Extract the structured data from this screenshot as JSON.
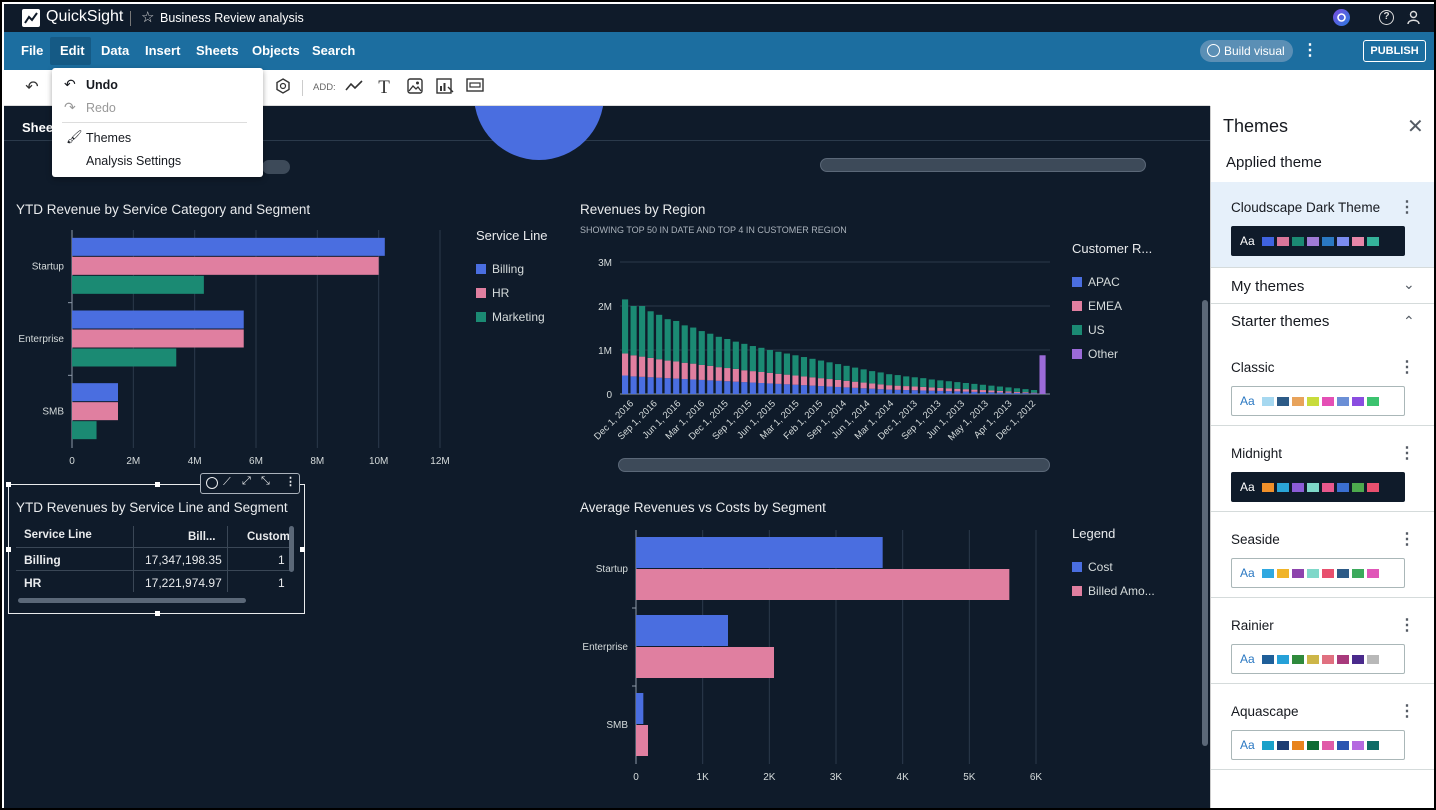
{
  "app": {
    "title": "QuickSight",
    "analysis_name": "Business Review analysis"
  },
  "menubar": {
    "items": [
      "File",
      "Edit",
      "Data",
      "Insert",
      "Sheets",
      "Objects",
      "Search"
    ],
    "build_visual": "Build visual",
    "publish": "PUBLISH"
  },
  "toolbar": {
    "add_label": "ADD:"
  },
  "edit_menu": {
    "undo": "Undo",
    "redo": "Redo",
    "themes": "Themes",
    "analysis_settings": "Analysis Settings"
  },
  "sheet_tab": "Sheet",
  "themes_panel": {
    "title": "Themes",
    "applied_label": "Applied theme",
    "applied": {
      "name": "Cloudscape Dark Theme",
      "aa": "Aa",
      "dark": true,
      "colors": [
        "#3f63e0",
        "#d9769a",
        "#1b8a73",
        "#9f7bd6",
        "#2a78c2",
        "#7b8cf0",
        "#e786a8",
        "#35b39a"
      ]
    },
    "my_themes": "My themes",
    "starter_themes": "Starter themes",
    "starters": [
      {
        "name": "Classic",
        "dark": false,
        "colors": [
          "#a6d8f0",
          "#2d5b87",
          "#e8a35b",
          "#c8dc3c",
          "#e44fb5",
          "#6b8fd6",
          "#8a4de0",
          "#3cc36f"
        ]
      },
      {
        "name": "Midnight",
        "dark": true,
        "colors": [
          "#f0902a",
          "#2aa5d8",
          "#8b5cd6",
          "#7fd8c9",
          "#e8588c",
          "#3a6fd0",
          "#4daa4d",
          "#e8506e"
        ]
      },
      {
        "name": "Seaside",
        "dark": false,
        "colors": [
          "#2fa8e0",
          "#f0b429",
          "#8e44ad",
          "#7fd8c9",
          "#e8506e",
          "#2d5b87",
          "#3caa5c",
          "#e056b8"
        ]
      },
      {
        "name": "Rainier",
        "dark": false,
        "colors": [
          "#1f5f99",
          "#26a1d8",
          "#2f8a3c",
          "#cdb648",
          "#e07080",
          "#a83a7c",
          "#4a2a8c",
          "#b8b8b8"
        ]
      },
      {
        "name": "Aquascape",
        "dark": false,
        "colors": [
          "#1aa1c9",
          "#1c3d73",
          "#e8831c",
          "#0e6b33",
          "#e05aa8",
          "#2a55b0",
          "#b56ae0",
          "#0e6b66"
        ]
      }
    ]
  },
  "colors": {
    "billing": "#4a6ee0",
    "hr": "#e07fa0",
    "marketing": "#1b8a73",
    "other": "#9b6bd8",
    "canvas": "#0f1b2a",
    "menubar": "#1c6ea0"
  },
  "visuals": {
    "ytd_bar": {
      "title": "YTD Revenue by Service Category and Segment",
      "legend_title": "Service Line",
      "legend": [
        "Billing",
        "HR",
        "Marketing"
      ]
    },
    "region": {
      "title": "Revenues by Region",
      "subtitle": "SHOWING TOP 50 IN DATE AND TOP 4 IN CUSTOMER REGION",
      "legend_title": "Customer R...",
      "legend": [
        "APAC",
        "EMEA",
        "US",
        "Other"
      ]
    },
    "table": {
      "title": "YTD Revenues by Service Line and Segment",
      "headers": [
        "Service Line",
        "Bill...",
        "Custom"
      ],
      "rows": [
        [
          "Billing",
          "17,347,198.35",
          "1"
        ],
        [
          "HR",
          "17,221,974.97",
          "1"
        ]
      ]
    },
    "avg": {
      "title": "Average Revenues vs Costs by Segment",
      "legend_title": "Legend",
      "legend": [
        "Cost",
        "Billed Amo..."
      ]
    }
  },
  "chart_data": [
    {
      "type": "bar",
      "orientation": "horizontal",
      "title": "YTD Revenue by Service Category and Segment",
      "categories": [
        "Startup",
        "Enterprise",
        "SMB"
      ],
      "series": [
        {
          "name": "Billing",
          "values": [
            10.2,
            5.6,
            1.5
          ]
        },
        {
          "name": "HR",
          "values": [
            10.0,
            5.6,
            1.5
          ]
        },
        {
          "name": "Marketing",
          "values": [
            4.3,
            3.4,
            0.8
          ]
        }
      ],
      "xticks": [
        "0",
        "2M",
        "4M",
        "6M",
        "8M",
        "10M",
        "12M"
      ],
      "xlim": [
        0,
        12
      ],
      "unit": "M"
    },
    {
      "type": "bar",
      "stacked": true,
      "title": "Revenues by Region",
      "x_tick_labels": [
        "Dec 1, 2016",
        "Sep 1, 2016",
        "Jun 1, 2016",
        "Mar 1, 2016",
        "Dec 1, 2015",
        "Sep 1, 2015",
        "Jun 1, 2015",
        "Mar 1, 2015",
        "Feb 1, 2015",
        "Sep 1, 2014",
        "Jun 1, 2014",
        "Mar 1, 2014",
        "Dec 1, 2013",
        "Sep 1, 2013",
        "Jun 1, 2013",
        "May 1, 2013",
        "Apr 1, 2013",
        "Dec 1, 2012"
      ],
      "yticks": [
        "0",
        "1M",
        "2M",
        "3M"
      ],
      "ylim": [
        0,
        3
      ],
      "series": [
        {
          "name": "APAC",
          "values": [
            0.42,
            0.4,
            0.39,
            0.38,
            0.37,
            0.36,
            0.35,
            0.34,
            0.33,
            0.32,
            0.31,
            0.3,
            0.29,
            0.28,
            0.27,
            0.26,
            0.25,
            0.24,
            0.23,
            0.22,
            0.21,
            0.2,
            0.19,
            0.18,
            0.17,
            0.16,
            0.15,
            0.14,
            0.13,
            0.12,
            0.11,
            0.1,
            0.095,
            0.09,
            0.085,
            0.08,
            0.075,
            0.07,
            0.065,
            0.06,
            0.055,
            0.05,
            0.045,
            0.04,
            0.035,
            0.03,
            0.025,
            0.02,
            0.015,
            0.0
          ]
        },
        {
          "name": "EMEA",
          "values": [
            0.5,
            0.48,
            0.46,
            0.44,
            0.42,
            0.4,
            0.39,
            0.37,
            0.36,
            0.34,
            0.33,
            0.31,
            0.3,
            0.29,
            0.27,
            0.26,
            0.25,
            0.24,
            0.23,
            0.22,
            0.21,
            0.2,
            0.19,
            0.18,
            0.17,
            0.16,
            0.15,
            0.14,
            0.13,
            0.12,
            0.11,
            0.1,
            0.095,
            0.09,
            0.085,
            0.08,
            0.075,
            0.07,
            0.065,
            0.06,
            0.055,
            0.05,
            0.045,
            0.04,
            0.035,
            0.03,
            0.025,
            0.02,
            0.015,
            0.0
          ]
        },
        {
          "name": "US",
          "values": [
            1.23,
            1.12,
            1.15,
            1.06,
            1.01,
            0.94,
            0.92,
            0.85,
            0.82,
            0.77,
            0.73,
            0.69,
            0.66,
            0.62,
            0.6,
            0.57,
            0.55,
            0.52,
            0.5,
            0.48,
            0.46,
            0.44,
            0.42,
            0.4,
            0.38,
            0.36,
            0.34,
            0.32,
            0.3,
            0.28,
            0.27,
            0.25,
            0.24,
            0.22,
            0.21,
            0.2,
            0.18,
            0.17,
            0.16,
            0.15,
            0.14,
            0.13,
            0.12,
            0.11,
            0.1,
            0.09,
            0.08,
            0.07,
            0.06,
            0.0
          ]
        },
        {
          "name": "Other",
          "values": [
            0,
            0,
            0,
            0,
            0,
            0,
            0,
            0,
            0,
            0,
            0,
            0,
            0,
            0,
            0,
            0,
            0,
            0,
            0,
            0,
            0,
            0,
            0,
            0,
            0,
            0,
            0,
            0,
            0,
            0,
            0,
            0,
            0,
            0,
            0,
            0,
            0,
            0,
            0,
            0,
            0,
            0,
            0,
            0,
            0,
            0,
            0,
            0,
            0,
            0.88
          ]
        }
      ]
    },
    {
      "type": "bar",
      "orientation": "horizontal",
      "title": "Average Revenues vs Costs by Segment",
      "categories": [
        "Startup",
        "Enterprise",
        "SMB"
      ],
      "series": [
        {
          "name": "Cost",
          "values": [
            3700,
            1380,
            110
          ]
        },
        {
          "name": "Billed Amo...",
          "values": [
            5600,
            2070,
            180
          ]
        }
      ],
      "xticks": [
        "0",
        "1K",
        "2K",
        "3K",
        "4K",
        "5K",
        "6K"
      ],
      "xlim": [
        0,
        6000
      ]
    }
  ]
}
